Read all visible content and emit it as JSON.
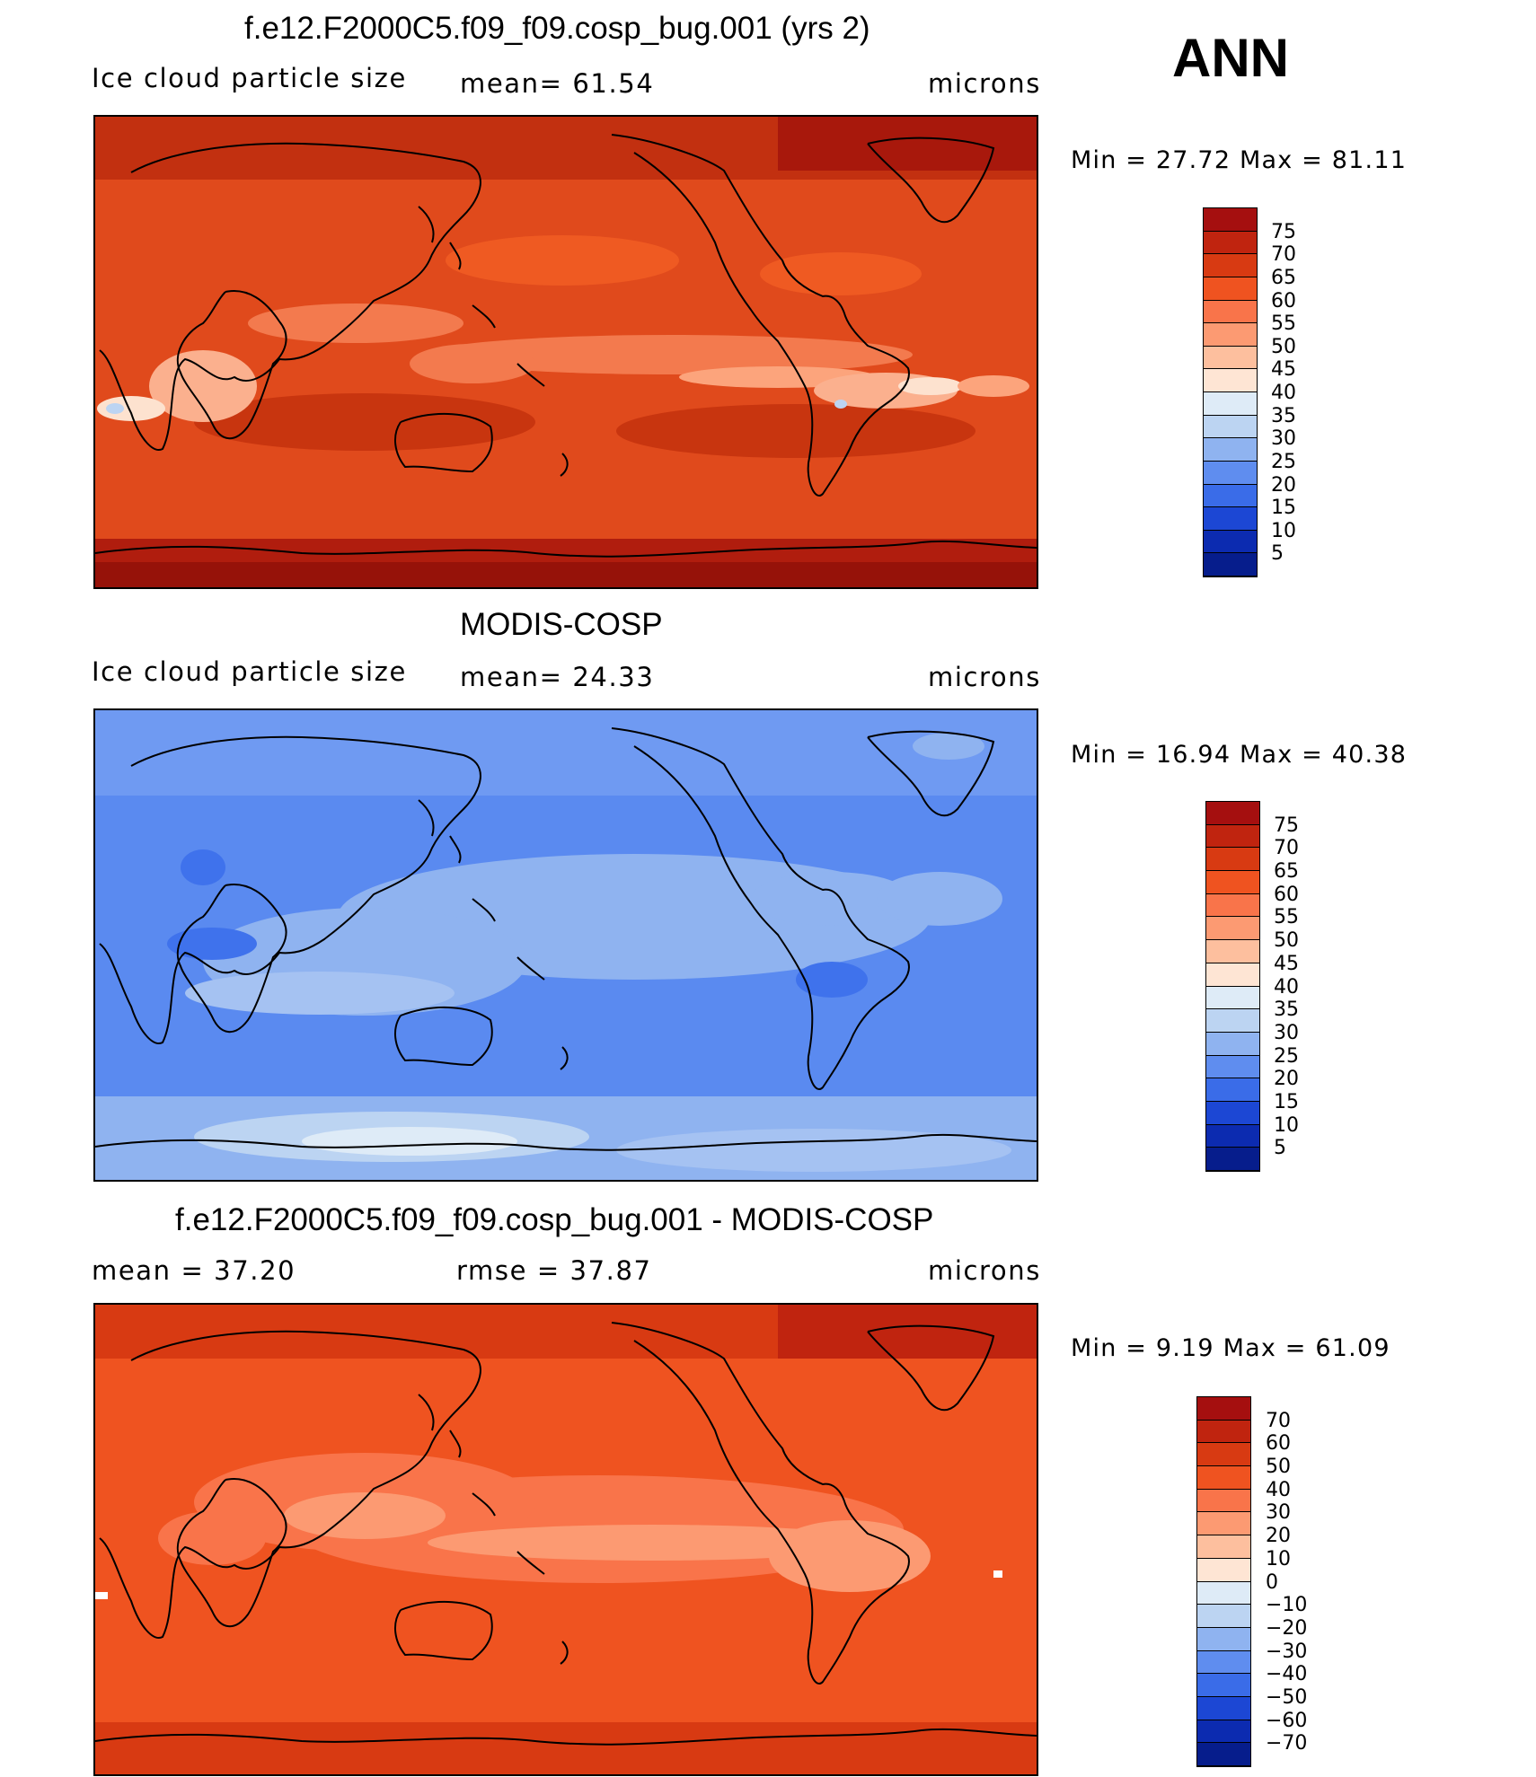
{
  "season": "ANN",
  "panels": [
    {
      "title": "f.e12.F2000C5.f09_f09.cosp_bug.001 (yrs 2)",
      "left_label": "Ice  cloud  particle  size",
      "mid_label": "mean=   61.54",
      "units": "microns",
      "minmax": "Min  =    27.72  Max  =    81.11",
      "colorbar_labels": [
        "75",
        "70",
        "65",
        "60",
        "55",
        "50",
        "45",
        "40",
        "35",
        "30",
        "25",
        "20",
        "15",
        "10",
        "5"
      ],
      "colors": [
        "#a50f0f",
        "#c0240f",
        "#d83a12",
        "#ef5320",
        "#f9744a",
        "#fc9a72",
        "#fdbf9e",
        "#fee5d4",
        "#deebf7",
        "#bcd4f2",
        "#8fb3f0",
        "#5f8def",
        "#3a6ce8",
        "#1c47d4",
        "#0c2bb0",
        "#061d8c"
      ]
    },
    {
      "title": "MODIS-COSP",
      "left_label": "Ice  cloud  particle  size",
      "mid_label": "mean=   24.33",
      "units": "microns",
      "minmax": "Min  =    16.94  Max  =    40.38",
      "colorbar_labels": [
        "75",
        "70",
        "65",
        "60",
        "55",
        "50",
        "45",
        "40",
        "35",
        "30",
        "25",
        "20",
        "15",
        "10",
        "5"
      ],
      "colors": [
        "#a50f0f",
        "#c0240f",
        "#d83a12",
        "#ef5320",
        "#f9744a",
        "#fc9a72",
        "#fdbf9e",
        "#fee5d4",
        "#deebf7",
        "#bcd4f2",
        "#8fb3f0",
        "#5f8def",
        "#3a6ce8",
        "#1c47d4",
        "#0c2bb0",
        "#061d8c"
      ]
    },
    {
      "title": "f.e12.F2000C5.f09_f09.cosp_bug.001 - MODIS-COSP",
      "left_label": "mean  =    37.20",
      "mid_label": "rmse  =    37.87",
      "units": "microns",
      "minmax": "Min  =     9.19  Max  =    61.09",
      "colorbar_labels": [
        "70",
        "60",
        "50",
        "40",
        "30",
        "20",
        "10",
        "0",
        "−10",
        "−20",
        "−30",
        "−40",
        "−50",
        "−60",
        "−70"
      ],
      "colors": [
        "#a50f0f",
        "#c0240f",
        "#d83a12",
        "#ef5320",
        "#f9744a",
        "#fc9a72",
        "#fdbf9e",
        "#fee5d4",
        "#deebf7",
        "#bcd4f2",
        "#8fb3f0",
        "#5f8def",
        "#3a6ce8",
        "#1c47d4",
        "#0c2bb0",
        "#061d8c"
      ]
    }
  ]
}
